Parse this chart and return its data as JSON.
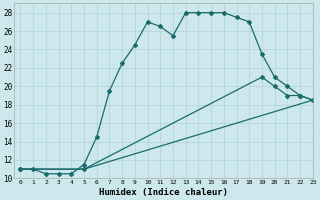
{
  "xlabel": "Humidex (Indice chaleur)",
  "background_color": "#cce8ec",
  "grid_color": "#b8d8dc",
  "line_color": "#1a6b6b",
  "xlim": [
    -0.5,
    23
  ],
  "ylim": [
    10,
    29
  ],
  "yticks": [
    10,
    12,
    14,
    16,
    18,
    20,
    22,
    24,
    26,
    28
  ],
  "xticks": [
    0,
    1,
    2,
    3,
    4,
    5,
    6,
    7,
    8,
    9,
    10,
    11,
    12,
    13,
    14,
    15,
    16,
    17,
    18,
    19,
    20,
    21,
    22,
    23
  ],
  "line1_x": [
    0,
    1,
    2,
    3,
    4,
    5,
    6,
    7,
    8,
    9,
    10,
    11,
    12,
    13,
    14,
    15,
    16,
    17,
    18,
    19,
    20,
    21,
    22,
    23
  ],
  "line1_y": [
    11,
    11,
    10.5,
    10.5,
    10.5,
    11.5,
    14.5,
    19.5,
    22.5,
    24.5,
    27.0,
    26.5,
    25.5,
    28.0,
    28.0,
    28.0,
    28.0,
    27.5,
    27.0,
    23.5,
    21.0,
    20.0,
    19.0,
    18.5
  ],
  "line2_x": [
    0,
    5,
    19,
    20,
    21,
    22,
    23
  ],
  "line2_y": [
    11,
    11,
    21.0,
    20.0,
    19.0,
    19.0,
    18.5
  ],
  "line3_x": [
    0,
    5,
    23
  ],
  "line3_y": [
    11,
    11,
    18.5
  ]
}
